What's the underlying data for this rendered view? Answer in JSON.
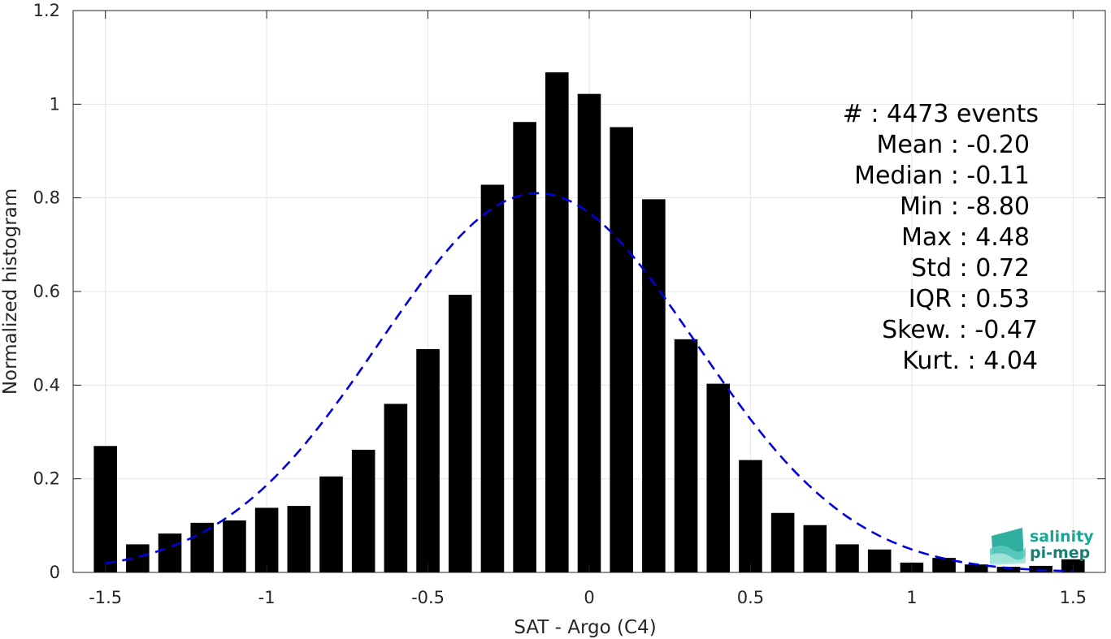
{
  "chart_data": {
    "type": "bar",
    "xlabel": "SAT - Argo (C4)",
    "ylabel": "Normalized histogram",
    "xlim": [
      -1.6,
      1.6
    ],
    "ylim": [
      0,
      1.2
    ],
    "xticks": [
      -1.5,
      -1,
      -0.5,
      0,
      0.5,
      1,
      1.5
    ],
    "xtick_labels": [
      "-1.5",
      "-1",
      "-0.5",
      "0",
      "0.5",
      "1",
      "1.5"
    ],
    "yticks": [
      0,
      0.2,
      0.4,
      0.6,
      0.8,
      1,
      1.2
    ],
    "ytick_labels": [
      "0",
      "0.2",
      "0.4",
      "0.6",
      "0.8",
      "1",
      "1.2"
    ],
    "grid": true,
    "bar_color": "#000000",
    "bins": [
      -1.5,
      -1.4,
      -1.3,
      -1.2,
      -1.1,
      -1.0,
      -0.9,
      -0.8,
      -0.7,
      -0.6,
      -0.5,
      -0.4,
      -0.3,
      -0.2,
      -0.1,
      0.0,
      0.1,
      0.2,
      0.3,
      0.4,
      0.5,
      0.6,
      0.7,
      0.8,
      0.9,
      1.0,
      1.1,
      1.2,
      1.3,
      1.4,
      1.5
    ],
    "values": [
      0.27,
      0.06,
      0.083,
      0.106,
      0.111,
      0.138,
      0.142,
      0.205,
      0.262,
      0.36,
      0.477,
      0.593,
      0.828,
      0.962,
      1.068,
      1.022,
      0.951,
      0.797,
      0.498,
      0.403,
      0.24,
      0.127,
      0.101,
      0.06,
      0.049,
      0.021,
      0.031,
      0.017,
      0.012,
      0.014,
      0.028
    ],
    "fit_curve": {
      "type": "gaussian",
      "style": "dashed",
      "color": "#0000dd",
      "mean": -0.16,
      "std": 0.49,
      "peak": 0.81,
      "x_range": [
        -1.5,
        1.5
      ]
    }
  },
  "stats": {
    "count": "#  : 4473 events",
    "mean": "Mean : -0.20",
    "median": "Median : -0.11",
    "min": "Min : -8.80",
    "max": "Max : 4.48",
    "std": "Std : 0.72",
    "iqr": "IQR : 0.53",
    "skew": "Skew. : -0.47",
    "kurt": "Kurt. : 4.04"
  },
  "logo": {
    "line1": "salinity",
    "line2": "pi-mep",
    "color": "#1aa596"
  }
}
